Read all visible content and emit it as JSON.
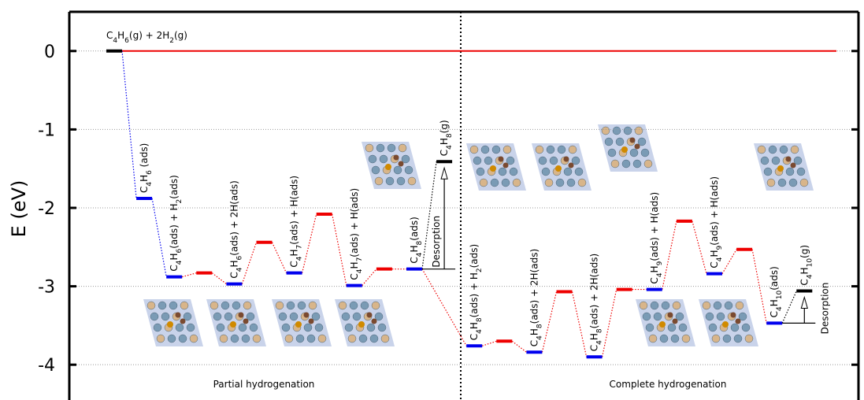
{
  "chart_data": {
    "type": "energy-profile",
    "y_label": "E (eV)",
    "ylim": [
      -4.45,
      0.5
    ],
    "yticks": [
      0,
      -1,
      -2,
      -3,
      -4
    ],
    "grid": true,
    "categories": [
      "C4H6(g) + 2H2(g)",
      "C4H6 (ads)",
      "C4H6(ads) + H2(ads)",
      null,
      "C4H6(ads) + 2H(ads)",
      null,
      "C4H7(ads) + H(ads)",
      null,
      "C4H7(ads) + H(ads)",
      null,
      "C4H8(ads)",
      "C4H8(g)",
      "C4H8(ads) + H2(ads)",
      null,
      "C4H8(ads) + 2H(ads)",
      null,
      "C4H8(ads) + 2H(ads)",
      null,
      "C4H9(ads) + H(ads)",
      null,
      "C4H9(ads) + H(ads)",
      null,
      "C4H10(ads)",
      "C4H10(g)"
    ],
    "values": [
      0,
      -1.88,
      -2.88,
      -2.83,
      -2.97,
      -2.44,
      -2.83,
      -2.08,
      -2.99,
      -2.78,
      -2.78,
      -1.41,
      -3.76,
      -3.7,
      -3.84,
      -3.07,
      -3.9,
      -3.04,
      -3.04,
      -2.17,
      -2.84,
      -2.53,
      -3.47,
      -3.06
    ],
    "colors": [
      "#000000",
      "#0000ee",
      "#0000ee",
      "#ee0000",
      "#0000ee",
      "#ee0000",
      "#0000ee",
      "#ee0000",
      "#0000ee",
      "#ee0000",
      "#0000ee",
      "#000000",
      "#0000ee",
      "#ee0000",
      "#0000ee",
      "#ee0000",
      "#0000ee",
      "#ee0000",
      "#0000ee",
      "#ee0000",
      "#0000ee",
      "#ee0000",
      "#0000ee",
      "#000000"
    ],
    "reference_color": "#ee0000",
    "annotations": [
      "Desorption",
      "Desorption",
      "Partial hydrogenation",
      "Complete hydrogenation"
    ]
  }
}
